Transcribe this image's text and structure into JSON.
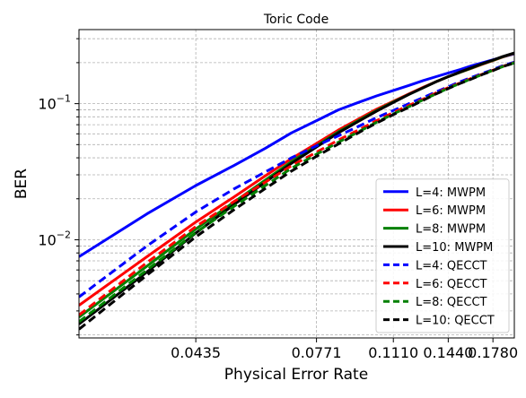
{
  "chart_data": {
    "type": "line",
    "title": "Toric Code",
    "xlabel": "Physical Error Rate",
    "ylabel": "BER",
    "xlim": [
      0.025,
      0.197
    ],
    "ylim": [
      0.0019,
      0.35
    ],
    "yscale": "log",
    "grid": true,
    "legend_position": "lower-right",
    "x": [
      0.025,
      0.0345,
      0.0435,
      0.052,
      0.0605,
      0.0685,
      0.0771,
      0.0855,
      0.094,
      0.1025,
      0.111,
      0.1195,
      0.128,
      0.136,
      0.144,
      0.1525,
      0.161,
      0.1695,
      0.178,
      0.1865,
      0.197
    ],
    "xticks": [
      {
        "value": 0.0435,
        "label": "0.0435"
      },
      {
        "value": 0.0771,
        "label": "0.0771"
      },
      {
        "value": 0.111,
        "label": "0.1110"
      },
      {
        "value": 0.144,
        "label": "0.1440"
      },
      {
        "value": 0.178,
        "label": "0.1780"
      }
    ],
    "yticks": [
      {
        "value": 0.01,
        "base": "10",
        "exp": "−2"
      },
      {
        "value": 0.1,
        "base": "10",
        "exp": "−1"
      }
    ],
    "series": [
      {
        "name": "L=4: MWPM",
        "color": "#0000ff",
        "dash": "solid",
        "values": [
          0.0075,
          0.0155,
          0.025,
          0.035,
          0.047,
          0.061,
          0.075,
          0.09,
          0.102,
          0.114,
          0.125,
          0.136,
          0.148,
          0.158,
          0.168,
          0.178,
          0.19,
          0.2,
          0.21,
          0.22,
          0.232
        ]
      },
      {
        "name": "L=6: MWPM",
        "color": "#ff0000",
        "dash": "solid",
        "values": [
          0.0033,
          0.0075,
          0.0135,
          0.0205,
          0.0295,
          0.0395,
          0.051,
          0.064,
          0.077,
          0.091,
          0.104,
          0.118,
          0.132,
          0.145,
          0.158,
          0.17,
          0.182,
          0.195,
          0.207,
          0.22,
          0.234
        ]
      },
      {
        "name": "L=8: MWPM",
        "color": "#008000",
        "dash": "solid",
        "values": [
          0.0027,
          0.0064,
          0.012,
          0.0188,
          0.0275,
          0.0375,
          0.049,
          0.062,
          0.075,
          0.089,
          0.103,
          0.117,
          0.131,
          0.145,
          0.158,
          0.17,
          0.183,
          0.196,
          0.208,
          0.221,
          0.235
        ]
      },
      {
        "name": "L=10: MWPM",
        "color": "#000000",
        "dash": "solid",
        "values": [
          0.0024,
          0.0058,
          0.0112,
          0.018,
          0.0265,
          0.0365,
          0.048,
          0.061,
          0.074,
          0.088,
          0.102,
          0.117,
          0.131,
          0.145,
          0.158,
          0.171,
          0.184,
          0.197,
          0.209,
          0.222,
          0.236
        ]
      },
      {
        "name": "L=4: QECCT",
        "color": "#0000ff",
        "dash": "dashed",
        "values": [
          0.0038,
          0.009,
          0.016,
          0.0235,
          0.0315,
          0.04,
          0.049,
          0.058,
          0.068,
          0.079,
          0.089,
          0.1,
          0.111,
          0.122,
          0.133,
          0.145,
          0.156,
          0.167,
          0.178,
          0.19,
          0.202
        ]
      },
      {
        "name": "L=6: QECCT",
        "color": "#ff0000",
        "dash": "dashed",
        "values": [
          0.0028,
          0.0068,
          0.0125,
          0.019,
          0.0265,
          0.035,
          0.044,
          0.054,
          0.064,
          0.075,
          0.086,
          0.097,
          0.108,
          0.12,
          0.131,
          0.142,
          0.154,
          0.165,
          0.176,
          0.188,
          0.2
        ]
      },
      {
        "name": "L=8: QECCT",
        "color": "#008000",
        "dash": "dashed",
        "values": [
          0.0025,
          0.006,
          0.0113,
          0.0175,
          0.025,
          0.0335,
          0.0425,
          0.052,
          0.062,
          0.073,
          0.084,
          0.095,
          0.107,
          0.118,
          0.13,
          0.141,
          0.153,
          0.164,
          0.176,
          0.187,
          0.199
        ]
      },
      {
        "name": "L=10: QECCT",
        "color": "#000000",
        "dash": "dashed",
        "values": [
          0.0022,
          0.0055,
          0.0105,
          0.0165,
          0.0238,
          0.032,
          0.041,
          0.0505,
          0.061,
          0.072,
          0.083,
          0.094,
          0.106,
          0.118,
          0.129,
          0.141,
          0.152,
          0.164,
          0.175,
          0.187,
          0.199
        ]
      }
    ]
  }
}
